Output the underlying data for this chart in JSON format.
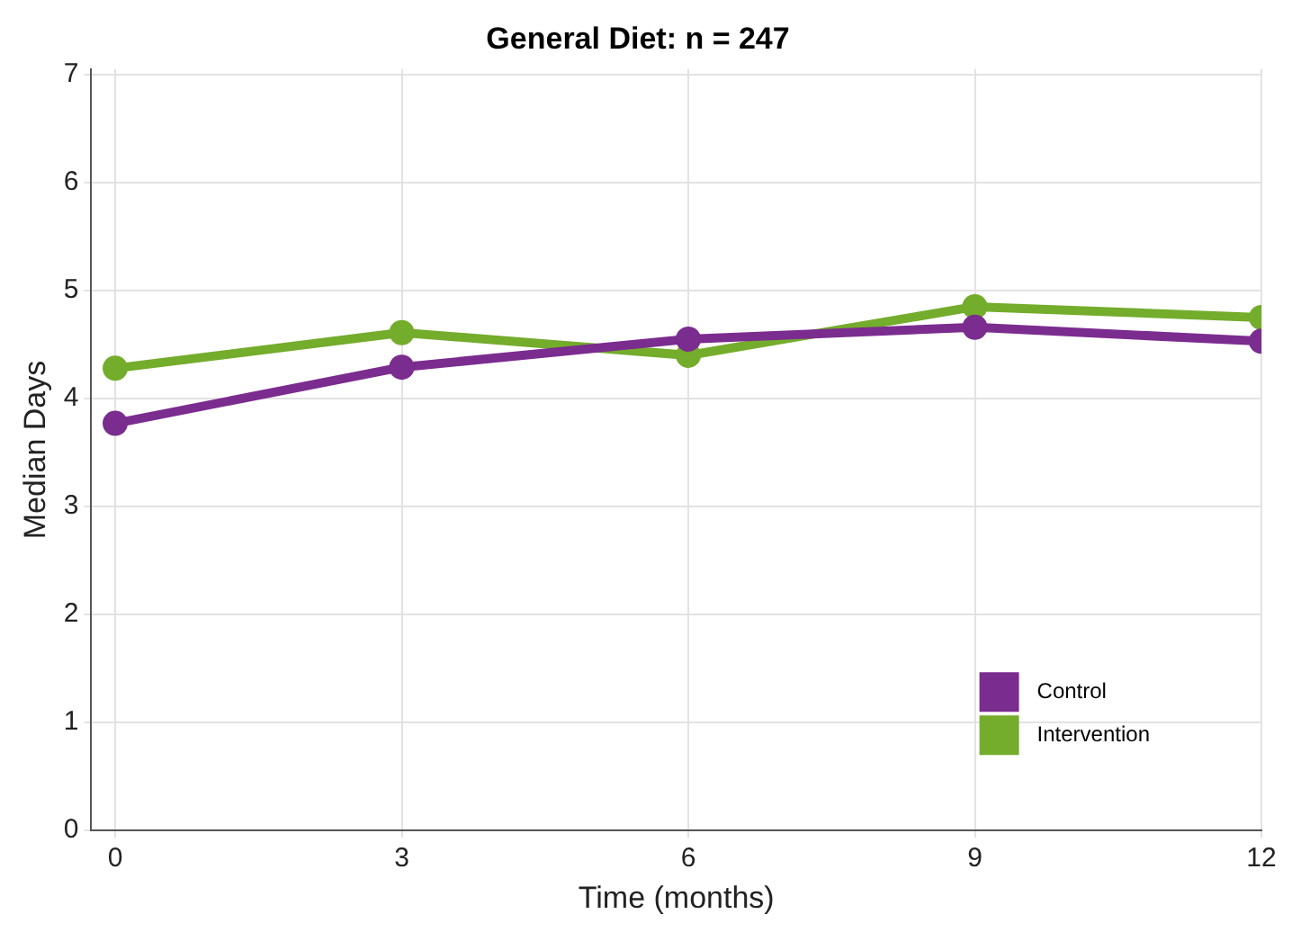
{
  "chart_data": {
    "type": "line",
    "title": "General Diet: n = 247",
    "xlabel": "Time (months)",
    "ylabel": "Median Days",
    "x": [
      0,
      3,
      6,
      9,
      12
    ],
    "series": [
      {
        "name": "Control",
        "color": "#7b2c8f",
        "values": [
          3.77,
          4.29,
          4.55,
          4.66,
          4.53
        ]
      },
      {
        "name": "Intervention",
        "color": "#74ac2c",
        "values": [
          4.28,
          4.61,
          4.4,
          4.85,
          4.75
        ]
      }
    ],
    "xlim": [
      -0.25,
      12
    ],
    "xticks": [
      0,
      3,
      6,
      9,
      12
    ],
    "ylim": [
      0,
      7.05
    ],
    "yticks": [
      0,
      1,
      2,
      3,
      4,
      5,
      6,
      7
    ],
    "grid": true,
    "legend": "bottom right",
    "marker": "circle",
    "line_style": "solid"
  }
}
